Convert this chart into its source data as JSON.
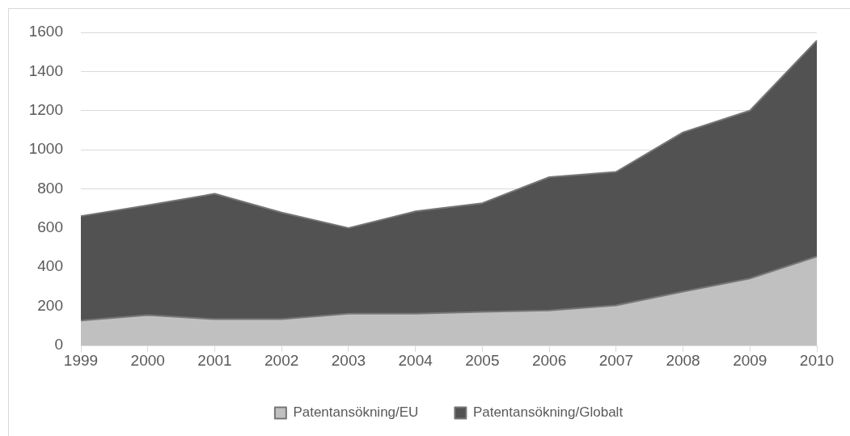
{
  "chart_data": {
    "type": "area",
    "stacked": true,
    "categories": [
      "1999",
      "2000",
      "2001",
      "2002",
      "2003",
      "2004",
      "2005",
      "2006",
      "2007",
      "2008",
      "2009",
      "2010"
    ],
    "series": [
      {
        "name": "Patentansökning/EU",
        "color": "#c0c0c0",
        "values": [
          127,
          155,
          134,
          134,
          162,
          162,
          172,
          179,
          205,
          275,
          342,
          455
        ]
      },
      {
        "name": "Patentansökning/Globalt",
        "color": "#525252",
        "values": [
          534,
          561,
          641,
          545,
          438,
          523,
          555,
          681,
          682,
          814,
          858,
          1103
        ]
      }
    ],
    "ylim": [
      0,
      1600
    ],
    "yticks": [
      0,
      200,
      400,
      600,
      800,
      1000,
      1200,
      1400,
      1600
    ],
    "grid": "y",
    "legend": "bottom"
  }
}
